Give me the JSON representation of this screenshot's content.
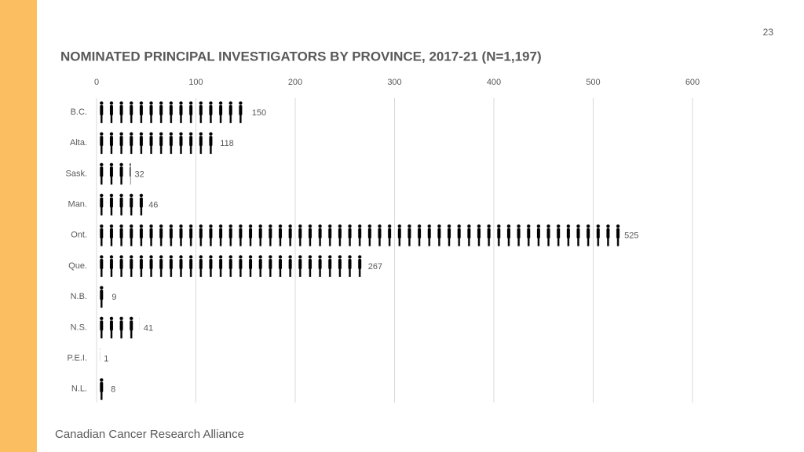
{
  "page_number": "23",
  "footer": "Canadian Cancer Research Alliance",
  "chart_data": {
    "type": "bar",
    "title": "NOMINATED PRINCIPAL INVESTIGATORS BY PROVINCE, 2017-21 (N=1,197)",
    "categories": [
      "B.C.",
      "Alta.",
      "Sask.",
      "Man.",
      "Ont.",
      "Que.",
      "N.B.",
      "N.S.",
      "P.E.I.",
      "N.L."
    ],
    "values": [
      150,
      118,
      32,
      46,
      525,
      267,
      9,
      41,
      1,
      8
    ],
    "color": "#000000",
    "xlim": [
      0,
      600
    ],
    "xticks": [
      0,
      100,
      200,
      300,
      400,
      500,
      600
    ],
    "grid": true
  }
}
